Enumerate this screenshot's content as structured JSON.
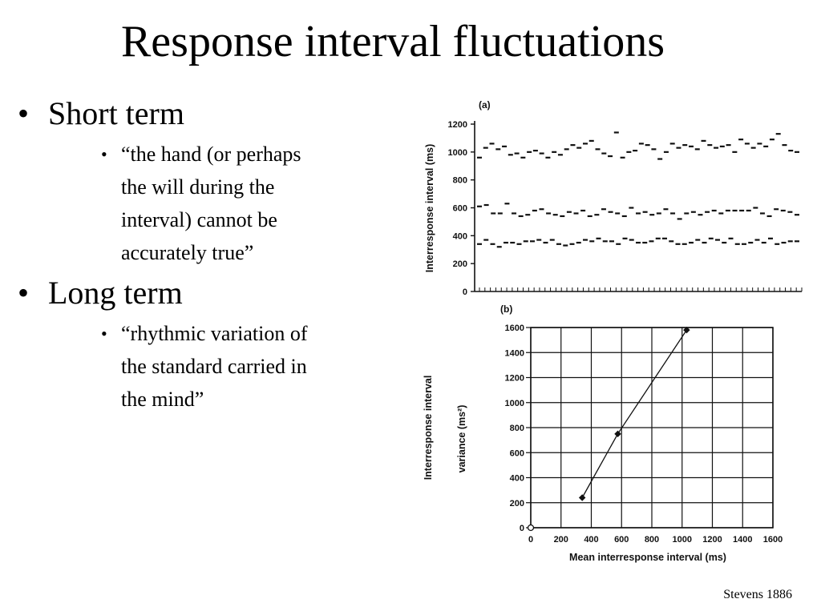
{
  "slide": {
    "title": "Response interval fluctuations",
    "bullets": [
      {
        "label": "Short term",
        "sub": [
          "“the hand (or perhaps",
          "the will during the",
          "interval) cannot be",
          "accurately true”"
        ]
      },
      {
        "label": "Long term",
        "sub": [
          "“rhythmic variation of",
          "the standard carried in",
          "the mind”"
        ]
      }
    ],
    "credit": "Stevens 1886"
  },
  "chart_data": [
    {
      "panel": "(a)",
      "type": "scatter",
      "ylabel": "Interresponse interval (ms)",
      "xlabel": "",
      "ylim": [
        0,
        1200
      ],
      "yticks": [
        0,
        200,
        400,
        600,
        800,
        1000,
        1200
      ],
      "grid": false,
      "series": [
        {
          "values": [
            960,
            1030,
            1060,
            1020,
            1040,
            980,
            990,
            960,
            1000,
            1010,
            990,
            960,
            1000,
            980,
            1020,
            1050,
            1030,
            1060,
            1080,
            1020,
            990,
            970,
            1140,
            960,
            1000,
            1010,
            1060,
            1050,
            1020,
            950,
            1000,
            1060,
            1030,
            1050,
            1040,
            1020,
            1080,
            1050,
            1030,
            1040,
            1050,
            1000,
            1090,
            1060,
            1030,
            1060,
            1040,
            1090,
            1130,
            1050,
            1010,
            1000
          ]
        },
        {
          "values": [
            610,
            620,
            560,
            560,
            630,
            560,
            540,
            550,
            580,
            590,
            560,
            550,
            540,
            570,
            560,
            580,
            540,
            550,
            590,
            570,
            560,
            540,
            600,
            560,
            570,
            550,
            560,
            590,
            560,
            520,
            560,
            570,
            550,
            570,
            580,
            560,
            580,
            580,
            580,
            580,
            600,
            560,
            540,
            590,
            580,
            570,
            550
          ]
        },
        {
          "values": [
            340,
            370,
            340,
            320,
            350,
            350,
            340,
            360,
            360,
            370,
            350,
            370,
            340,
            330,
            340,
            350,
            370,
            360,
            380,
            360,
            360,
            340,
            380,
            370,
            350,
            350,
            360,
            380,
            380,
            360,
            340,
            340,
            350,
            370,
            350,
            380,
            370,
            350,
            380,
            340,
            340,
            350,
            370,
            350,
            380,
            340,
            350,
            360,
            360
          ]
        }
      ]
    },
    {
      "panel": "(b)",
      "type": "line",
      "xlabel": "Mean interresponse interval (ms)",
      "ylabel": "Interresponse interval",
      "ylabel2": "variance (ms²)",
      "xlim": [
        0,
        1600
      ],
      "ylim": [
        0,
        1600
      ],
      "xticks": [
        0,
        200,
        400,
        600,
        800,
        1000,
        1200,
        1400,
        1600
      ],
      "yticks": [
        0,
        200,
        400,
        600,
        800,
        1000,
        1200,
        1400,
        1600
      ],
      "grid": true,
      "x": [
        0,
        340,
        575,
        1030
      ],
      "y": [
        0,
        240,
        750,
        1580
      ]
    }
  ]
}
